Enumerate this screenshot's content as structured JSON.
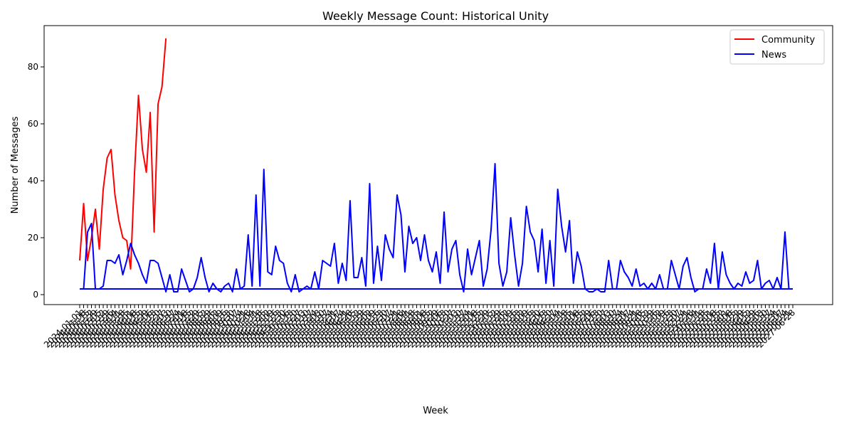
{
  "chart_data": {
    "type": "line",
    "title": "Weekly Message Count: Historical Unity",
    "xlabel": "Week",
    "ylabel": "Number of Messages",
    "ylim": [
      -3.5,
      94.5
    ],
    "yticks": [
      0,
      20,
      40,
      60,
      80
    ],
    "grid": false,
    "legend_position": "upper right",
    "x_count": 183,
    "x_tick_labels": [
      "2024-01-01",
      "2024-01-08",
      "2024-01-15",
      "2024-01-22",
      "2024-01-29",
      "2024-02-05",
      "2024-02-12",
      "2024-02-19",
      "2024-02-26",
      "2024-03-04",
      "2024-03-11",
      "2024-03-18",
      "2024-03-25",
      "2024-04-01",
      "2024-04-08",
      "2024-04-15",
      "2024-04-22",
      "2024-04-29",
      "2024-05-06",
      "2024-05-13",
      "2024-05-20",
      "2024-05-27",
      "2024-06-03",
      "2024-06-10",
      "2024-06-17",
      "2024-06-24",
      "2024-07-01",
      "2024-07-08",
      "2024-07-15",
      "2024-07-22",
      "2024-07-29",
      "2024-08-05",
      "2024-08-12",
      "2024-08-19",
      "2024-08-26",
      "2024-09-02",
      "2024-09-09",
      "2024-09-16",
      "2024-09-23",
      "2024-09-30",
      "2024-10-07",
      "2024-10-14",
      "2024-10-21",
      "2024-10-28",
      "2024-11-04",
      "2024-11-11",
      "2024-11-18",
      "2024-11-25",
      "2024-12-02",
      "2024-12-09",
      "2024-12-16",
      "2024-12-23",
      "2024-12-30",
      "2025-01-06",
      "2025-01-13",
      "2025-01-20",
      "2025-01-27",
      "2025-02-03",
      "2025-02-10",
      "2025-02-17",
      "2025-02-24",
      "2025-03-03",
      "2025-03-10",
      "2025-03-17",
      "2025-03-24",
      "2025-03-31",
      "2025-04-07",
      "2025-04-14",
      "2025-04-21",
      "2025-04-28",
      "2025-05-05",
      "2025-05-12",
      "2025-05-19",
      "2025-05-26",
      "2025-06-02",
      "2025-06-09",
      "2025-06-16",
      "2025-06-23",
      "2025-06-30",
      "2025-07-07",
      "2025-07-14",
      "2025-07-21",
      "2025-07-28",
      "2025-08-04",
      "2025-08-11",
      "2025-08-18",
      "2025-08-25",
      "2025-09-01",
      "2025-09-08",
      "2025-09-15",
      "2025-09-22",
      "2025-09-29",
      "2025-10-06",
      "2025-10-13",
      "2025-10-20",
      "2025-10-27",
      "2025-11-03",
      "2025-11-10",
      "2025-11-17",
      "2025-11-24",
      "2025-12-01",
      "2025-12-08",
      "2025-12-15",
      "2025-12-22",
      "2025-12-29",
      "2026-01-05",
      "2026-01-12",
      "2026-01-19",
      "2026-01-26",
      "2026-02-02",
      "2026-02-09",
      "2026-02-16",
      "2026-02-23",
      "2026-03-02",
      "2026-03-09",
      "2026-03-16",
      "2026-03-23",
      "2026-03-30",
      "2026-04-06",
      "2026-04-13",
      "2026-04-20",
      "2026-04-27",
      "2026-05-04",
      "2026-05-11",
      "2026-05-18",
      "2026-05-25",
      "2026-06-01",
      "2026-06-08",
      "2026-06-15",
      "2026-06-22",
      "2026-06-29",
      "2026-07-06",
      "2026-07-13",
      "2026-07-20",
      "2026-07-27",
      "2026-08-03",
      "2026-08-10",
      "2026-08-17",
      "2026-08-24",
      "2026-08-31",
      "2026-09-07",
      "2026-09-14",
      "2026-09-21",
      "2026-09-28",
      "2026-10-05",
      "2026-10-12",
      "2026-10-19",
      "2026-10-26",
      "2026-11-02",
      "2026-11-09",
      "2026-11-16",
      "2026-11-23",
      "2026-11-30",
      "2026-12-07",
      "2026-12-14",
      "2026-12-21",
      "2026-12-28",
      "2027-01-04",
      "2027-01-11",
      "2027-01-18",
      "2027-01-25",
      "2027-02-01",
      "2027-02-08",
      "2027-02-15",
      "2027-02-22",
      "2027-03-01",
      "2027-03-08",
      "2027-03-15",
      "2027-03-22",
      "2027-03-29",
      "2027-04-05",
      "2027-04-12",
      "2027-04-19",
      "2027-04-26",
      "2027-05-03",
      "2027-05-10",
      "2027-05-17",
      "2027-05-24",
      "2027-05-31",
      "2027-06-07",
      "2027-06-14",
      "2027-06-21",
      "2027-06-28"
    ],
    "series": [
      {
        "name": "Community",
        "color": "#ff0000",
        "start_index": 0,
        "values": [
          12,
          32,
          12,
          20,
          30,
          16,
          37,
          48,
          51,
          35,
          26,
          20,
          19,
          9,
          43,
          70,
          51,
          43,
          64,
          22,
          67,
          73,
          90
        ]
      },
      {
        "name": "News",
        "color": "#0000ff",
        "start_index": 0,
        "values": [
          2,
          2,
          22,
          25,
          2,
          2,
          3,
          12,
          12,
          11,
          14,
          7,
          12,
          18,
          14,
          11,
          7,
          4,
          12,
          12,
          11,
          6,
          1,
          7,
          1,
          1,
          9,
          5,
          1,
          2,
          6,
          13,
          6,
          1,
          4,
          2,
          1,
          3,
          4,
          1,
          9,
          2,
          3,
          21,
          3,
          35,
          3,
          44,
          8,
          7,
          17,
          12,
          11,
          4,
          1,
          7,
          1,
          2,
          3,
          2,
          8,
          2,
          12,
          11,
          10,
          18,
          4,
          11,
          5,
          33,
          6,
          6,
          13,
          3,
          39,
          4,
          17,
          5,
          21,
          16,
          13,
          35,
          28,
          8,
          24,
          18,
          20,
          12,
          21,
          12,
          8,
          15,
          4,
          29,
          8,
          16,
          19,
          7,
          1,
          16,
          7,
          13,
          19,
          3,
          9,
          23,
          46,
          11,
          3,
          8,
          27,
          14,
          3,
          11,
          31,
          22,
          19,
          8,
          23,
          4,
          19,
          3,
          37,
          24,
          15,
          26,
          4,
          15,
          10,
          2,
          1,
          1,
          2,
          1,
          1,
          12,
          2,
          2,
          12,
          8,
          6,
          3,
          9,
          3,
          4,
          2,
          4,
          2,
          7,
          2,
          2,
          12,
          7,
          2,
          10,
          13,
          6,
          1,
          2,
          2,
          9,
          4,
          18,
          2,
          15,
          7,
          4,
          2,
          4,
          3,
          8,
          4,
          5,
          12,
          2,
          4,
          5,
          2,
          6,
          2,
          22,
          2
        ],
        "baseline_value": 2,
        "baseline_start_index": 0
      }
    ]
  },
  "legend": {
    "community": "Community",
    "news": "News"
  }
}
